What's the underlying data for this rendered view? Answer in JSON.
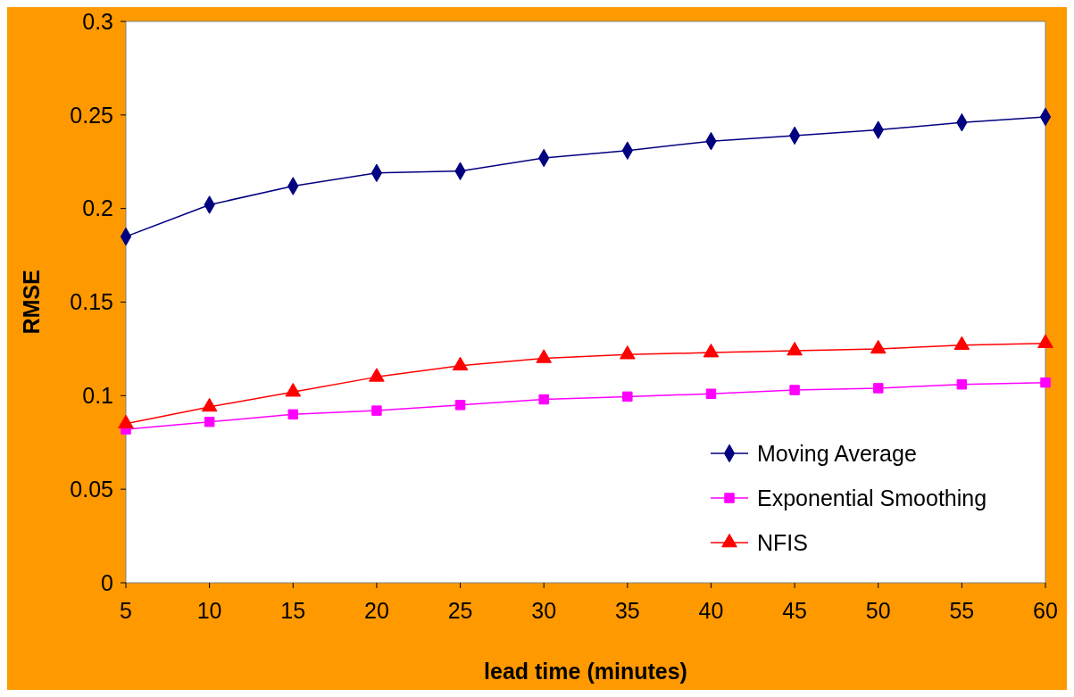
{
  "chart_data": {
    "type": "line",
    "xlabel": "lead time (minutes)",
    "ylabel": "RMSE",
    "x": [
      5,
      10,
      15,
      20,
      25,
      30,
      35,
      40,
      45,
      50,
      55,
      60
    ],
    "xlim": [
      5,
      60
    ],
    "xticks": [
      5,
      10,
      15,
      20,
      25,
      30,
      35,
      40,
      45,
      50,
      55,
      60
    ],
    "ylim": [
      0,
      0.3
    ],
    "yticks": [
      0,
      0.05,
      0.1,
      0.15,
      0.2,
      0.25,
      0.3
    ],
    "grid": false,
    "legend": "bottom right",
    "series": [
      {
        "name": "Moving Average",
        "color": "#000080",
        "marker": "diamond",
        "values": [
          0.185,
          0.202,
          0.212,
          0.219,
          0.22,
          0.227,
          0.231,
          0.236,
          0.239,
          0.242,
          0.246,
          0.249
        ]
      },
      {
        "name": "Exponential Smoothing",
        "color": "#ff00ff",
        "marker": "square",
        "values": [
          0.082,
          0.086,
          0.09,
          0.092,
          0.095,
          0.098,
          0.0995,
          0.101,
          0.103,
          0.104,
          0.106,
          0.107
        ]
      },
      {
        "name": "NFIS",
        "color": "#ff0000",
        "marker": "triangle",
        "values": [
          0.085,
          0.094,
          0.102,
          0.11,
          0.116,
          0.12,
          0.122,
          0.123,
          0.124,
          0.125,
          0.127,
          0.128
        ]
      }
    ]
  }
}
